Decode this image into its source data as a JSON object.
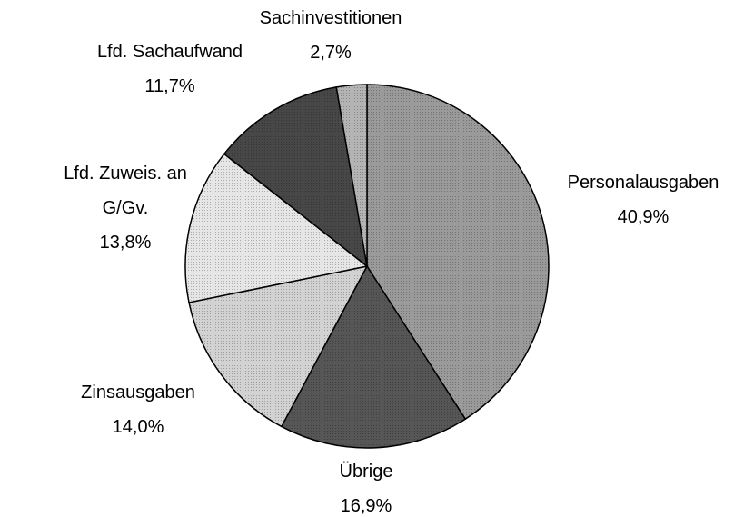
{
  "chart_data": {
    "type": "pie",
    "categories": [
      "Personalausgaben",
      "Übrige",
      "Zinsausgaben",
      "Lfd. Zuweis. an G/Gv.",
      "Lfd. Sachaufwand",
      "Sachinvestitionen"
    ],
    "values": [
      40.9,
      16.9,
      14.0,
      13.8,
      11.7,
      2.7
    ],
    "value_labels": [
      "40,9%",
      "16,9%",
      "14,0%",
      "13,8%",
      "11,7%",
      "2,7%"
    ],
    "colors": [
      "#9a9a9a",
      "#565656",
      "#d2d2d2",
      "#e6e6e6",
      "#474747",
      "#b4b4b4"
    ]
  }
}
